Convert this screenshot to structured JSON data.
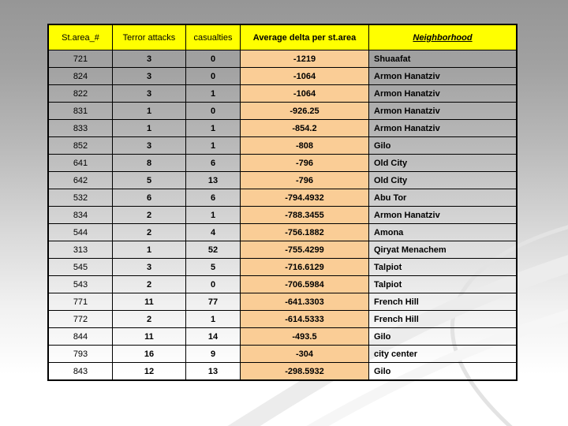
{
  "colors": {
    "header_bg": "#ffff00",
    "delta_bg": "#facd96",
    "border": "#000000",
    "background_top": "#969696",
    "background_bottom": "#ffffff"
  },
  "table": {
    "columns": [
      "St.area_#",
      "Terror attacks",
      "casualties",
      "Average delta per st.area",
      "Neighborhood"
    ],
    "rows": [
      [
        "721",
        "3",
        "0",
        "-1219",
        "Shuaafat"
      ],
      [
        "824",
        "3",
        "0",
        "-1064",
        "Armon Hanatziv"
      ],
      [
        "822",
        "3",
        "1",
        "-1064",
        "Armon Hanatziv"
      ],
      [
        "831",
        "1",
        "0",
        "-926.25",
        "Armon Hanatziv"
      ],
      [
        "833",
        "1",
        "1",
        "-854.2",
        "Armon Hanatziv"
      ],
      [
        "852",
        "3",
        "1",
        "-808",
        "Gilo"
      ],
      [
        "641",
        "8",
        "6",
        "-796",
        "Old City"
      ],
      [
        "642",
        "5",
        "13",
        "-796",
        "Old City"
      ],
      [
        "532",
        "6",
        "6",
        "-794.4932",
        "Abu Tor"
      ],
      [
        "834",
        "2",
        "1",
        "-788.3455",
        "Armon Hanatziv"
      ],
      [
        "544",
        "2",
        "4",
        "-756.1882",
        "Amona"
      ],
      [
        "313",
        "1",
        "52",
        "-755.4299",
        "Qiryat Menachem"
      ],
      [
        "545",
        "3",
        "5",
        "-716.6129",
        "Talpiot"
      ],
      [
        "543",
        "2",
        "0",
        "-706.5984",
        "Talpiot"
      ],
      [
        "771",
        "11",
        "77",
        "-641.3303",
        "French Hill"
      ],
      [
        "772",
        "2",
        "1",
        "-614.5333",
        "French Hill"
      ],
      [
        "844",
        "11",
        "14",
        "-493.5",
        "Gilo"
      ],
      [
        "793",
        "16",
        "9",
        "-304",
        "city center"
      ],
      [
        "843",
        "12",
        "13",
        "-298.5932",
        "Gilo"
      ]
    ]
  }
}
